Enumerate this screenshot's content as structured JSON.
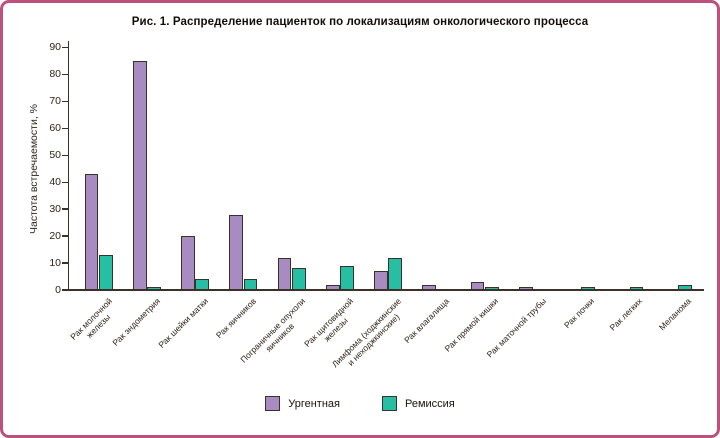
{
  "figure": {
    "border_color": "#bc517e",
    "background_color": "#ffffff"
  },
  "chart_data": {
    "type": "bar",
    "title": "Рис. 1. Распределение пациенток по локализациям онкологического процесса",
    "xlabel": "",
    "ylabel": "Частота встречаемости, %",
    "ylim": [
      0,
      90
    ],
    "yticks": [
      0,
      10,
      20,
      30,
      40,
      50,
      60,
      70,
      80,
      90
    ],
    "grid": false,
    "legend_position": "bottom",
    "bar_border_color": "#3b3129",
    "categories": [
      "Рак молочной\nжелезы",
      "Рак эндометрия",
      "Рак шейки матки",
      "Рак яичников",
      "Пограничные опухоли\nяичников",
      "Рак щитовидной\nжелезы",
      "Лимфома (ходжкинские\nи неходжкинские)",
      "Рак влагалища",
      "Рак прямой кишки",
      "Рак маточной трубы",
      "Рак почки",
      "Рак легких",
      "Меланома"
    ],
    "series": [
      {
        "name": "Ургентная",
        "color": "#a78bc1",
        "values": [
          43,
          85,
          20,
          28,
          12,
          2,
          7,
          2,
          3,
          1,
          0,
          0,
          0
        ]
      },
      {
        "name": "Ремиссия",
        "color": "#26bfa3",
        "values": [
          13,
          1,
          4,
          4,
          8,
          9,
          12,
          0,
          1,
          0,
          1,
          1,
          2
        ]
      }
    ]
  }
}
